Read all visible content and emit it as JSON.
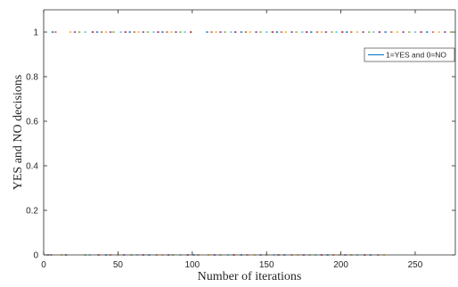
{
  "chart_data": {
    "type": "scatter",
    "title": "",
    "xlabel": "Number of iterations",
    "ylabel": "YES and NO decisions",
    "xlim": [
      0,
      277
    ],
    "ylim": [
      0,
      1.1
    ],
    "xticks": [
      0,
      50,
      100,
      150,
      200,
      250
    ],
    "xtick_labels": [
      "0",
      "50",
      "100",
      "150",
      "200",
      "250"
    ],
    "yticks": [
      0,
      0.2,
      0.4,
      0.6,
      0.8,
      1
    ],
    "ytick_labels": [
      "0",
      "0.2",
      "0.4",
      "0.6",
      "0.8",
      "1"
    ],
    "grid": false,
    "legend": {
      "position": "top-right",
      "entries": [
        "1=YES and 0=NO"
      ]
    },
    "series": [
      {
        "name": "1=YES and 0=NO",
        "color": "#0072bd",
        "points": {
          "y1_x": [
            6,
            8,
            18,
            21,
            24,
            28,
            33,
            36,
            39,
            42,
            45,
            47,
            52,
            55,
            58,
            61,
            64,
            67,
            70,
            74,
            77,
            80,
            83,
            86,
            89,
            92,
            95,
            99,
            110,
            113,
            116,
            119,
            122,
            126,
            129,
            133,
            136,
            139,
            143,
            146,
            150,
            154,
            157,
            160,
            163,
            167,
            170,
            174,
            177,
            180,
            184,
            187,
            190,
            194,
            197,
            201,
            204,
            207,
            211,
            215,
            219,
            222,
            226,
            230,
            234,
            238,
            242,
            246,
            250,
            254,
            258,
            262,
            266,
            270,
            274
          ],
          "y0_x": [
            3,
            5,
            12,
            15,
            28,
            31,
            37,
            42,
            45,
            50,
            54,
            59,
            63,
            67,
            71,
            76,
            80,
            84,
            87,
            92,
            97,
            101,
            104,
            111,
            115,
            119,
            124,
            128,
            133,
            137,
            142,
            146,
            150,
            155,
            158,
            162,
            167,
            171,
            175,
            179,
            183,
            187,
            191,
            195,
            199,
            203,
            207,
            211,
            216,
            220,
            225,
            229
          ]
        }
      }
    ],
    "marker_colors": [
      "#0072bd",
      "#d95319",
      "#edb120",
      "#7e2f8e",
      "#77ac30",
      "#4dbeee",
      "#a2142f"
    ]
  }
}
